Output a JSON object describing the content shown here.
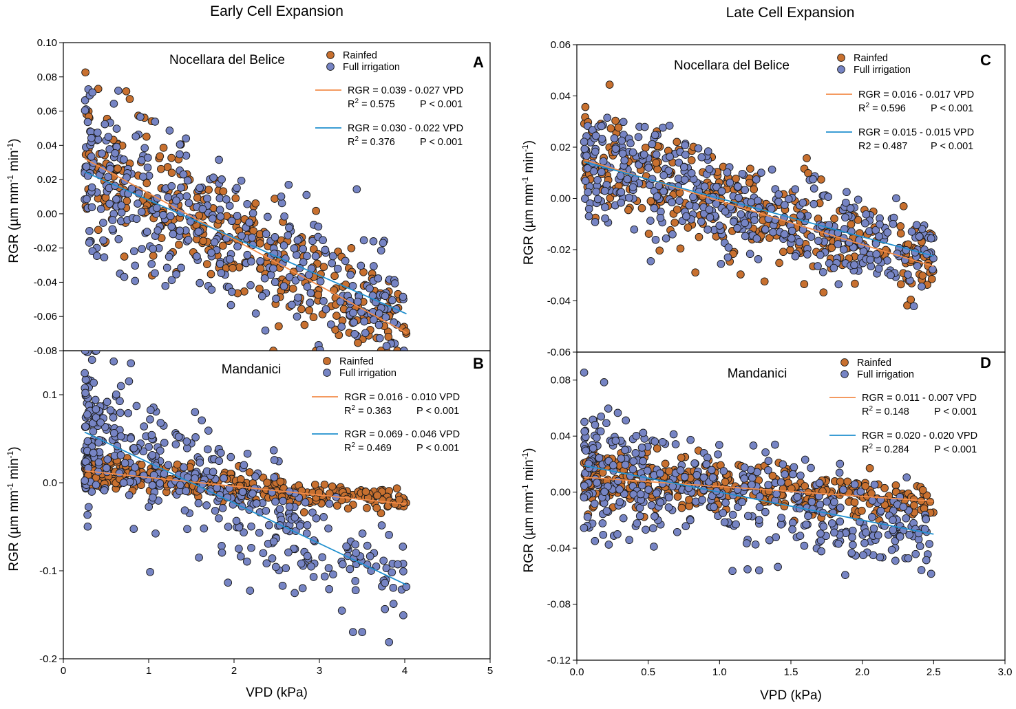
{
  "figure": {
    "column_titles": [
      "Early Cell Expansion",
      "Late Cell Expansion"
    ],
    "colors": {
      "rainfed_fill": "#c8702f",
      "irrigated_fill": "#7684c4",
      "rainfed_line": "#f28c4a",
      "irrigated_line": "#1f8fce",
      "marker_edge": "#1a1a1a"
    }
  },
  "chart_data": [
    {
      "type": "scatter",
      "panel": "A",
      "site": "Nocellara del Belice",
      "column": "Early Cell Expansion",
      "xlabel": "",
      "ylabel": "RGR (µm mm-1 min-1)",
      "xlim": [
        0,
        5
      ],
      "ylim": [
        -0.08,
        0.1
      ],
      "yticks": [
        "-0.08",
        "-0.06",
        "-0.04",
        "-0.02",
        "0.00",
        "0.02",
        "0.04",
        "0.06",
        "0.08",
        "0.10"
      ],
      "xticks": [],
      "legend": [
        "Rainfed",
        "Full irrigation"
      ],
      "seed": 11,
      "series": [
        {
          "name": "Rainfed",
          "n": 330,
          "x_range": [
            0.25,
            4.02
          ],
          "skew": 1.15,
          "intercept": 0.039,
          "slope": -0.027,
          "sd": 0.0165,
          "eq": "RGR = 0.039 - 0.027 VPD",
          "r2_label": "R",
          "r2_sup": "2",
          "r2": " = 0.575",
          "p": "P < 0.001"
        },
        {
          "name": "Full irrigation",
          "n": 380,
          "x_range": [
            0.25,
            4.02
          ],
          "skew": 1.35,
          "intercept": 0.03,
          "slope": -0.022,
          "sd": 0.021,
          "eq": "RGR = 0.030 - 0.022 VPD",
          "r2_label": "R",
          "r2_sup": "2",
          "r2": " = 0.376",
          "p": "P < 0.001"
        }
      ],
      "fit_lines": [
        {
          "name": "Rainfed",
          "x": [
            0.25,
            4.02
          ],
          "intercept": 0.039,
          "slope": -0.027
        },
        {
          "name": "Full irrigation",
          "x": [
            0.25,
            4.02
          ],
          "intercept": 0.03,
          "slope": -0.022
        }
      ]
    },
    {
      "type": "scatter",
      "panel": "B",
      "site": "Mandanici",
      "column": "Early Cell Expansion",
      "xlabel": "VPD (kPa)",
      "ylabel": "RGR (µm mm-1 min-1)",
      "xlim": [
        0,
        5
      ],
      "ylim": [
        -0.2,
        0.15
      ],
      "yticks": [
        "-0.2",
        "-0.1",
        "0.0",
        "0.1"
      ],
      "xticks": [
        "0",
        "1",
        "2",
        "3",
        "4",
        "5"
      ],
      "legend": [
        "Rainfed",
        "Full irrigation"
      ],
      "seed": 23,
      "series": [
        {
          "name": "Rainfed",
          "n": 360,
          "x_range": [
            0.25,
            4.02
          ],
          "skew": 1.35,
          "intercept": 0.016,
          "slope": -0.01,
          "sd": 0.008,
          "eq": "RGR = 0.016 - 0.010 VPD",
          "r2_label": "R",
          "r2_sup": "2",
          "r2": " = 0.363",
          "p": "P < 0.001"
        },
        {
          "name": "Full irrigation",
          "n": 420,
          "x_range": [
            0.25,
            4.02
          ],
          "skew": 1.55,
          "intercept": 0.069,
          "slope": -0.046,
          "sd": 0.033,
          "eq": "RGR = 0.069 - 0.046 VPD",
          "r2_label": "R",
          "r2_sup": "2",
          "r2": " = 0.469",
          "p": "P < 0.001"
        }
      ],
      "fit_lines": [
        {
          "name": "Rainfed",
          "x": [
            0.25,
            4.02
          ],
          "intercept": 0.016,
          "slope": -0.01
        },
        {
          "name": "Full irrigation",
          "x": [
            0.25,
            4.02
          ],
          "intercept": 0.069,
          "slope": -0.046
        }
      ]
    },
    {
      "type": "scatter",
      "panel": "C",
      "site": "Nocellara del Belice",
      "column": "Late Cell Expansion",
      "xlabel": "",
      "ylabel": "RGR (µm mm-1 min-1)",
      "xlim": [
        0,
        3.0
      ],
      "ylim": [
        -0.06,
        0.06
      ],
      "yticks": [
        "-0.06",
        "-0.04",
        "-0.02",
        "0.00",
        "0.02",
        "0.04",
        "0.06"
      ],
      "xticks": [],
      "legend": [
        "Rainfed",
        "Full irrigation"
      ],
      "seed": 37,
      "series": [
        {
          "name": "Rainfed",
          "n": 330,
          "x_range": [
            0.05,
            2.5
          ],
          "skew": 1.15,
          "intercept": 0.016,
          "slope": -0.017,
          "sd": 0.0095,
          "eq": "RGR = 0.016 - 0.017 VPD",
          "r2_label": "R",
          "r2_sup": "2",
          "r2": " = 0.596",
          "p": "P < 0.001"
        },
        {
          "name": "Full irrigation",
          "n": 420,
          "x_range": [
            0.05,
            2.5
          ],
          "skew": 1.25,
          "intercept": 0.015,
          "slope": -0.015,
          "sd": 0.0095,
          "eq": "RGR = 0.015 - 0.015 VPD",
          "r2_label": "R2",
          "r2_sup": "",
          "r2": " = 0.487",
          "p": "P < 0.001"
        }
      ],
      "fit_lines": [
        {
          "name": "Rainfed",
          "x": [
            0.05,
            2.5
          ],
          "intercept": 0.016,
          "slope": -0.017
        },
        {
          "name": "Full irrigation",
          "x": [
            0.05,
            2.5
          ],
          "intercept": 0.015,
          "slope": -0.015
        }
      ]
    },
    {
      "type": "scatter",
      "panel": "D",
      "site": "Mandanici",
      "column": "Late Cell Expansion",
      "xlabel": "VPD (kPa)",
      "ylabel": "RGR (µm mm-1 min-1)",
      "xlim": [
        0,
        3.0
      ],
      "ylim": [
        -0.12,
        0.1
      ],
      "yticks": [
        "-0.12",
        "-0.08",
        "-0.04",
        "0.00",
        "0.04",
        "0.08"
      ],
      "xticks": [
        "0.0",
        "0.5",
        "1.0",
        "1.5",
        "2.0",
        "2.5",
        "3.0"
      ],
      "legend": [
        "Rainfed",
        "Full irrigation"
      ],
      "seed": 51,
      "series": [
        {
          "name": "Rainfed",
          "n": 360,
          "x_range": [
            0.05,
            2.5
          ],
          "skew": 1.3,
          "intercept": 0.011,
          "slope": -0.007,
          "sd": 0.0085,
          "eq": "RGR = 0.011 - 0.007 VPD",
          "r2_label": "R",
          "r2_sup": "2",
          "r2": " = 0.148",
          "p": "P < 0.001"
        },
        {
          "name": "Full irrigation",
          "n": 420,
          "x_range": [
            0.05,
            2.5
          ],
          "skew": 1.5,
          "intercept": 0.02,
          "slope": -0.02,
          "sd": 0.019,
          "eq": "RGR = 0.020 - 0.020 VPD",
          "r2_label": "R",
          "r2_sup": "2",
          "r2": " = 0.284",
          "p": "P < 0.001"
        }
      ],
      "fit_lines": [
        {
          "name": "Rainfed",
          "x": [
            0.05,
            2.5
          ],
          "intercept": 0.011,
          "slope": -0.007
        },
        {
          "name": "Full irrigation",
          "x": [
            0.05,
            2.5
          ],
          "intercept": 0.02,
          "slope": -0.02
        }
      ]
    }
  ]
}
